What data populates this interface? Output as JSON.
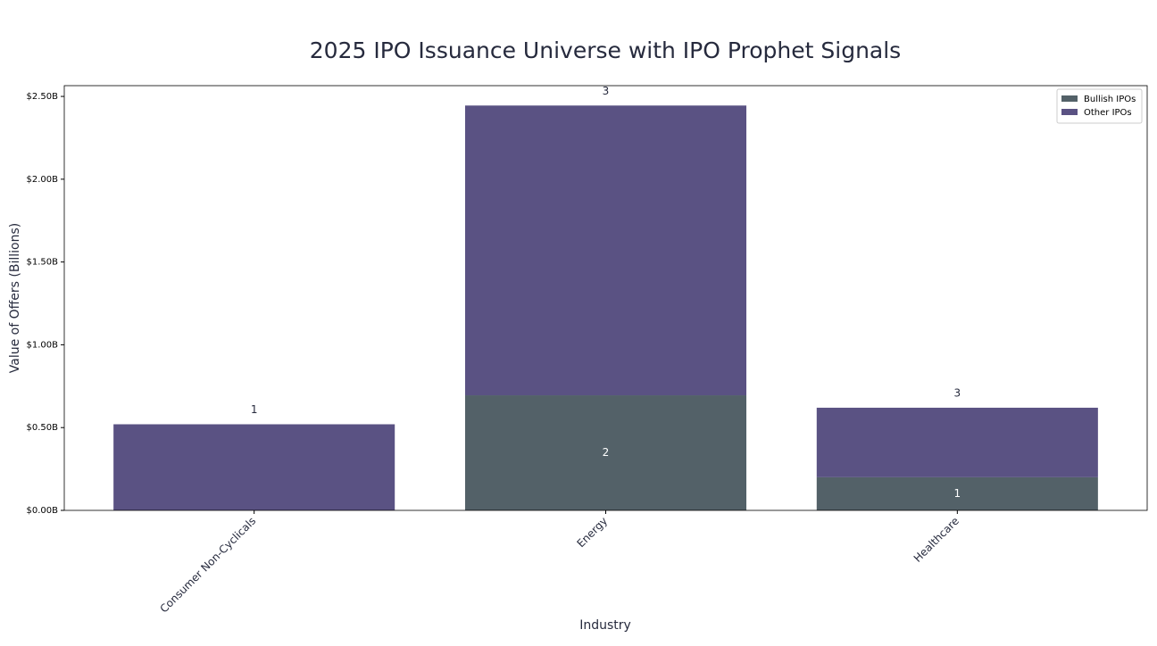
{
  "chart_data": {
    "type": "stacked_bar",
    "title": "2025 IPO Issuance Universe with IPO Prophet Signals",
    "x_label": "Industry",
    "y_label": "Value of Offers (Billions)",
    "categories": [
      "Consumer Non-Cyclicals",
      "Energy",
      "Healthcare"
    ],
    "series": [
      {
        "name": "Bullish IPOs",
        "color": "#536168",
        "values": [
          0,
          0.695,
          0.2
        ],
        "count_labels": [
          "0",
          "2",
          "1"
        ]
      },
      {
        "name": "Other IPOs",
        "color": "#5a5283",
        "values": [
          0.52,
          1.75,
          0.42
        ]
      }
    ],
    "total_counts": [
      "1",
      "3",
      "3"
    ],
    "ylim": [
      0,
      2.565
    ],
    "yticks": [
      {
        "value": 0,
        "label": "$0.00B"
      },
      {
        "value": 0.5,
        "label": "$0.50B"
      },
      {
        "value": 1,
        "label": "$1.00B"
      },
      {
        "value": 1.5,
        "label": "$1.50B"
      },
      {
        "value": 2,
        "label": "$2.00B"
      },
      {
        "value": 2.5,
        "label": "$2.50B"
      }
    ],
    "legend": "upper-right"
  }
}
